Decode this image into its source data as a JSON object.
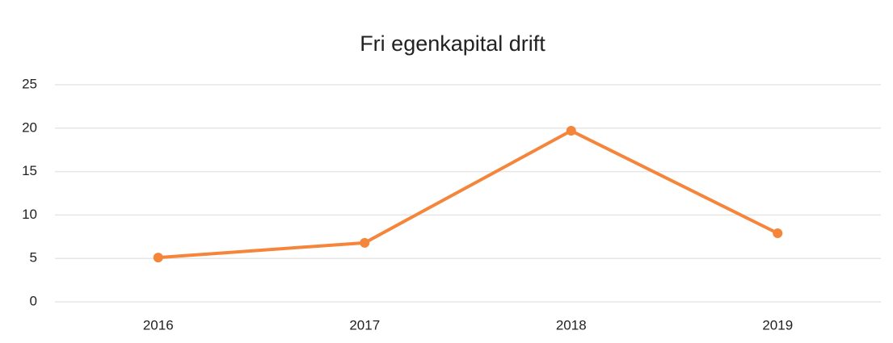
{
  "chart_data": {
    "type": "line",
    "title": "Fri egenkapital drift",
    "categories": [
      "2016",
      "2017",
      "2018",
      "2019"
    ],
    "series": [
      {
        "name": "Fri egenkapital drift",
        "color": "#f5853a",
        "values": [
          5.1,
          6.8,
          19.7,
          7.9
        ]
      }
    ],
    "ylim": [
      0,
      25
    ],
    "yticks": [
      0,
      5,
      10,
      15,
      20,
      25
    ],
    "grid": true
  }
}
